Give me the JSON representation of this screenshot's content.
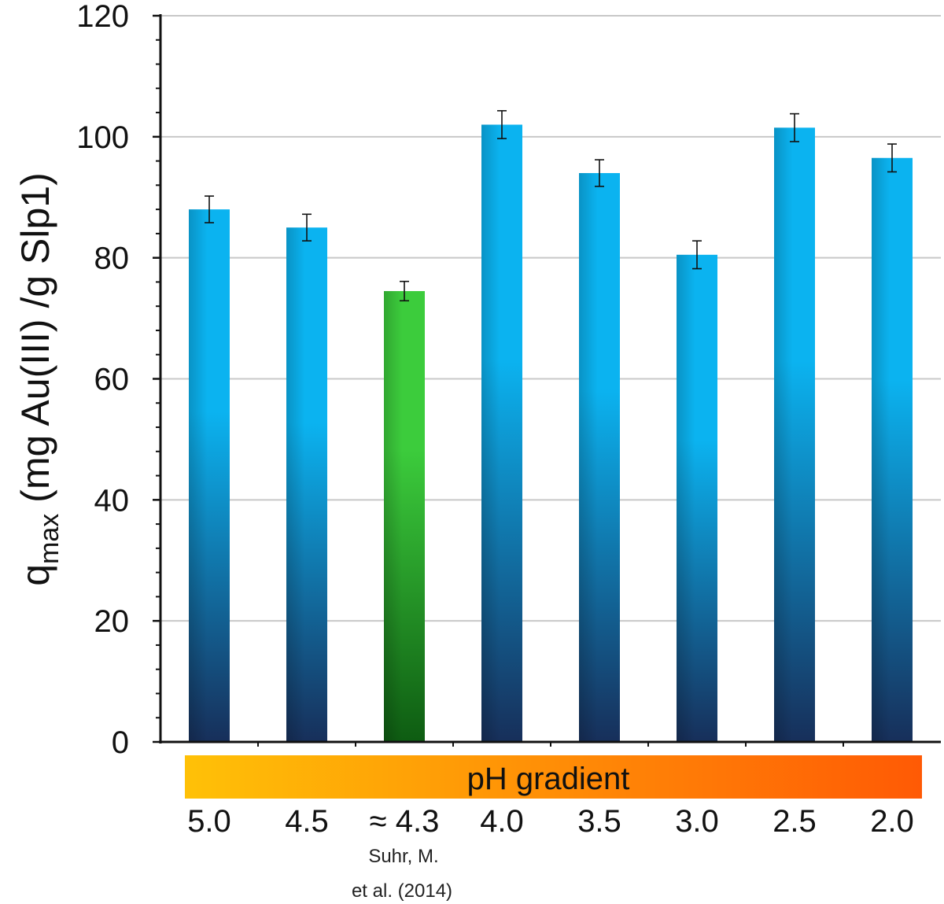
{
  "chart_data": {
    "type": "bar",
    "title": "",
    "xlabel": "",
    "ylabel_main": "q",
    "ylabel_sub": "max",
    "ylabel_rest": " (mg Au(III) /g Slp1)",
    "ylim": [
      0,
      120
    ],
    "yticks": [
      "0",
      "20",
      "40",
      "60",
      "80",
      "100",
      "120"
    ],
    "categories": [
      "5.0",
      "4.5",
      "≈ 4.3",
      "4.0",
      "3.5",
      "3.0",
      "2.5",
      "2.0"
    ],
    "values": [
      88,
      85,
      74.5,
      102,
      94,
      80.5,
      101.5,
      96.5
    ],
    "errors": [
      2.2,
      2.2,
      1.6,
      2.3,
      2.2,
      2.3,
      2.3,
      2.3
    ],
    "highlight_index": 2,
    "note_lines": [
      "Suhr, M.",
      "et al. (2014)"
    ],
    "gradient_label": "pH gradient",
    "grid": true,
    "colors": {
      "bar_top": "#0bb3f0",
      "bar_bottom": "#172f5a",
      "highlight_top": "#3ccc3c",
      "highlight_bottom": "#0e5c12",
      "gradient_start": "#ffc107",
      "gradient_end": "#ff5a05",
      "grid": "#c8c8c8",
      "axis": "#111111",
      "error": "#111111"
    }
  }
}
